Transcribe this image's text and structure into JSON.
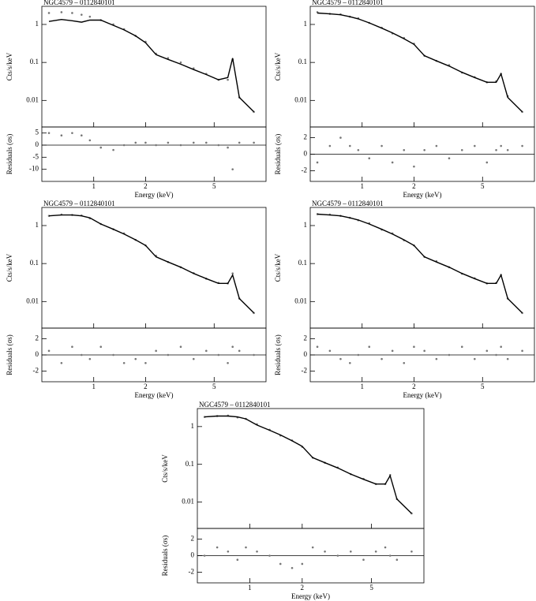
{
  "chart_data": [
    {
      "type": "line",
      "title": "NGC4579 – 0112840101",
      "ylabel": "Cts/s/keV",
      "log_x": true,
      "log_y": true,
      "xlim": [
        0.5,
        10
      ],
      "ylim": [
        0.002,
        3
      ],
      "yticks": [
        0.01,
        0.1,
        1
      ],
      "x": [
        0.55,
        0.65,
        0.75,
        0.85,
        0.95,
        1.1,
        1.3,
        1.5,
        1.75,
        2.0,
        2.3,
        2.7,
        3.2,
        3.8,
        4.5,
        5.3,
        6.0,
        6.4,
        7.0,
        8.5
      ],
      "series": [
        {
          "color": "#777777",
          "values": [
            2.0,
            2.1,
            2.0,
            1.8,
            1.6,
            1.3,
            1.0,
            0.75,
            0.5,
            0.35,
            0.17,
            0.13,
            0.1,
            0.07,
            0.05,
            0.035,
            0.035,
            0.12,
            0.012,
            0.005
          ]
        },
        {
          "color": "#000000",
          "values": [
            1.2,
            1.35,
            1.25,
            1.15,
            1.3,
            1.3,
            0.95,
            0.72,
            0.5,
            0.33,
            0.16,
            0.12,
            0.09,
            0.065,
            0.048,
            0.035,
            0.04,
            0.13,
            0.012,
            0.005
          ]
        }
      ]
    },
    {
      "type": "scatter",
      "ylabel": "Residuals (σs)",
      "xlabel": "Energy (keV)",
      "xlim": [
        0.5,
        10
      ],
      "ylim": [
        -15,
        7.5
      ],
      "xticks": [
        1,
        2,
        5
      ],
      "yticks": [
        -10,
        -5,
        0,
        5
      ],
      "hline": 0,
      "color": "#777777",
      "x": [
        0.55,
        0.65,
        0.75,
        0.85,
        0.95,
        1.1,
        1.3,
        1.5,
        1.75,
        2.0,
        2.3,
        2.7,
        3.2,
        3.8,
        4.5,
        5.3,
        6.0,
        6.4,
        7.0,
        8.5
      ],
      "values": [
        5,
        4,
        5,
        4,
        2,
        -1,
        -2,
        0,
        1,
        1,
        0,
        1,
        0,
        1,
        1,
        0,
        -1,
        -10,
        1,
        1
      ]
    },
    {
      "type": "line",
      "title": "NGC4579 – 0112840101",
      "ylabel": "Cts/s/keV",
      "log_x": true,
      "log_y": true,
      "xlim": [
        0.5,
        10
      ],
      "ylim": [
        0.002,
        3
      ],
      "yticks": [
        0.01,
        0.1,
        1
      ],
      "x": [
        0.55,
        0.65,
        0.75,
        0.85,
        0.95,
        1.1,
        1.3,
        1.5,
        1.75,
        2.0,
        2.3,
        2.7,
        3.2,
        3.8,
        4.5,
        5.3,
        6.0,
        6.4,
        7.0,
        8.5
      ],
      "series": [
        {
          "color": "#777777",
          "values": [
            2.1,
            1.9,
            1.85,
            1.6,
            1.45,
            1.1,
            0.82,
            0.58,
            0.44,
            0.31,
            0.15,
            0.11,
            0.085,
            0.054,
            0.041,
            0.03,
            0.032,
            0.05,
            0.013,
            0.005
          ]
        },
        {
          "color": "#000000",
          "values": [
            2.0,
            1.9,
            1.8,
            1.6,
            1.4,
            1.1,
            0.8,
            0.6,
            0.42,
            0.3,
            0.15,
            0.11,
            0.08,
            0.055,
            0.04,
            0.03,
            0.03,
            0.05,
            0.012,
            0.005
          ]
        }
      ]
    },
    {
      "type": "scatter",
      "ylabel": "Residuals (σs)",
      "xlabel": "Energy (keV)",
      "xlim": [
        0.5,
        10
      ],
      "ylim": [
        -3.3,
        3.3
      ],
      "xticks": [
        1,
        2,
        5
      ],
      "yticks": [
        -2,
        0,
        2
      ],
      "hline": 0,
      "color": "#777777",
      "x": [
        0.55,
        0.65,
        0.75,
        0.85,
        0.95,
        1.1,
        1.3,
        1.5,
        1.75,
        2.0,
        2.3,
        2.7,
        3.2,
        3.8,
        4.5,
        5.3,
        6.0,
        6.4,
        7.0,
        8.5
      ],
      "values": [
        -1,
        1,
        2,
        1,
        0.5,
        -0.5,
        1,
        -1,
        0.5,
        -1.5,
        0.5,
        1,
        -0.5,
        0.5,
        1,
        -1,
        0.5,
        1,
        0.5,
        1
      ]
    },
    {
      "type": "line",
      "title": "NGC4579 – 0112840101",
      "ylabel": "Cts/s/keV",
      "log_x": true,
      "log_y": true,
      "xlim": [
        0.5,
        10
      ],
      "ylim": [
        0.002,
        3
      ],
      "yticks": [
        0.01,
        0.1,
        1
      ],
      "x": [
        0.55,
        0.65,
        0.75,
        0.85,
        0.95,
        1.1,
        1.3,
        1.5,
        1.75,
        2.0,
        2.3,
        2.7,
        3.2,
        3.8,
        4.5,
        5.3,
        6.0,
        6.4,
        7.0,
        8.5
      ],
      "series": [
        {
          "color": "#777777",
          "values": [
            1.8,
            1.95,
            1.9,
            1.85,
            1.55,
            1.1,
            0.8,
            0.62,
            0.42,
            0.3,
            0.16,
            0.11,
            0.08,
            0.056,
            0.04,
            0.031,
            0.03,
            0.055,
            0.012,
            0.005
          ]
        },
        {
          "color": "#000000",
          "values": [
            1.8,
            1.9,
            1.9,
            1.8,
            1.6,
            1.1,
            0.8,
            0.6,
            0.42,
            0.3,
            0.15,
            0.11,
            0.08,
            0.055,
            0.04,
            0.03,
            0.03,
            0.05,
            0.012,
            0.005
          ]
        }
      ]
    },
    {
      "type": "scatter",
      "ylabel": "Residuals (σs)",
      "xlabel": "Energy (keV)",
      "xlim": [
        0.5,
        10
      ],
      "ylim": [
        -3.3,
        3.3
      ],
      "xticks": [
        1,
        2,
        5
      ],
      "yticks": [
        -2,
        0,
        2
      ],
      "hline": 0,
      "color": "#777777",
      "x": [
        0.55,
        0.65,
        0.75,
        0.85,
        0.95,
        1.1,
        1.3,
        1.5,
        1.75,
        2.0,
        2.3,
        2.7,
        3.2,
        3.8,
        4.5,
        5.3,
        6.0,
        6.4,
        7.0,
        8.5
      ],
      "values": [
        0.5,
        -1,
        1,
        0,
        -0.5,
        1,
        0,
        -1,
        -0.5,
        -1,
        0.5,
        0,
        1,
        -0.5,
        0.5,
        0,
        -1,
        1,
        0.5,
        0
      ]
    },
    {
      "type": "line",
      "title": "NGC4579 – 0112840101",
      "ylabel": "Cts/s/keV",
      "log_x": true,
      "log_y": true,
      "xlim": [
        0.5,
        10
      ],
      "ylim": [
        0.002,
        3
      ],
      "yticks": [
        0.01,
        0.1,
        1
      ],
      "x": [
        0.55,
        0.65,
        0.75,
        0.85,
        0.95,
        1.1,
        1.3,
        1.5,
        1.75,
        2.0,
        2.3,
        2.7,
        3.2,
        3.8,
        4.5,
        5.3,
        6.0,
        6.4,
        7.0,
        8.5
      ],
      "series": [
        {
          "color": "#777777",
          "values": [
            2.0,
            1.95,
            1.8,
            1.6,
            1.38,
            1.15,
            0.78,
            0.62,
            0.41,
            0.3,
            0.15,
            0.115,
            0.08,
            0.054,
            0.041,
            0.03,
            0.031,
            0.05,
            0.012,
            0.005
          ]
        },
        {
          "color": "#000000",
          "values": [
            2.0,
            1.9,
            1.8,
            1.6,
            1.4,
            1.1,
            0.8,
            0.6,
            0.42,
            0.3,
            0.15,
            0.11,
            0.08,
            0.055,
            0.04,
            0.03,
            0.03,
            0.05,
            0.012,
            0.005
          ]
        }
      ]
    },
    {
      "type": "scatter",
      "ylabel": "Residuals (σs)",
      "xlabel": "Energy (keV)",
      "xlim": [
        0.5,
        10
      ],
      "ylim": [
        -3.3,
        3.3
      ],
      "xticks": [
        1,
        2,
        5
      ],
      "yticks": [
        -2,
        0,
        2
      ],
      "hline": 0,
      "color": "#777777",
      "x": [
        0.55,
        0.65,
        0.75,
        0.85,
        0.95,
        1.1,
        1.3,
        1.5,
        1.75,
        2.0,
        2.3,
        2.7,
        3.2,
        3.8,
        4.5,
        5.3,
        6.0,
        6.4,
        7.0,
        8.5
      ],
      "values": [
        1,
        0.5,
        -0.5,
        -1,
        0,
        1,
        -0.5,
        0.5,
        -1,
        1,
        0.5,
        -0.5,
        0,
        1,
        -0.5,
        0.5,
        0,
        1,
        -0.5,
        0.5
      ]
    },
    {
      "type": "line",
      "title": "NGC4579 – 0112840101",
      "ylabel": "Cts/s/keV",
      "log_x": true,
      "log_y": true,
      "xlim": [
        0.5,
        10
      ],
      "ylim": [
        0.002,
        3
      ],
      "yticks": [
        0.01,
        0.1,
        1
      ],
      "x": [
        0.55,
        0.65,
        0.75,
        0.85,
        0.95,
        1.1,
        1.3,
        1.5,
        1.75,
        2.0,
        2.3,
        2.7,
        3.2,
        3.8,
        4.5,
        5.3,
        6.0,
        6.4,
        7.0,
        8.5
      ],
      "series": [
        {
          "color": "#777777",
          "values": [
            1.8,
            1.9,
            1.95,
            1.75,
            1.6,
            1.15,
            0.82,
            0.58,
            0.43,
            0.29,
            0.15,
            0.11,
            0.082,
            0.055,
            0.041,
            0.03,
            0.03,
            0.052,
            0.012,
            0.005
          ]
        },
        {
          "color": "#000000",
          "values": [
            1.8,
            1.9,
            1.9,
            1.8,
            1.6,
            1.1,
            0.8,
            0.6,
            0.42,
            0.3,
            0.15,
            0.11,
            0.08,
            0.055,
            0.04,
            0.03,
            0.03,
            0.05,
            0.012,
            0.005
          ]
        }
      ]
    },
    {
      "type": "scatter",
      "ylabel": "Residuals (σs)",
      "xlabel": "Energy (keV)",
      "xlim": [
        0.5,
        10
      ],
      "ylim": [
        -3.3,
        3.3
      ],
      "xticks": [
        1,
        2,
        5
      ],
      "yticks": [
        -2,
        0,
        2
      ],
      "hline": 0,
      "color": "#777777",
      "x": [
        0.55,
        0.65,
        0.75,
        0.85,
        0.95,
        1.1,
        1.3,
        1.5,
        1.75,
        2.0,
        2.3,
        2.7,
        3.2,
        3.8,
        4.5,
        5.3,
        6.0,
        6.4,
        7.0,
        8.5
      ],
      "values": [
        0,
        1,
        0.5,
        -0.5,
        1,
        0.5,
        0,
        -1,
        -1.5,
        -1,
        1,
        0.5,
        0,
        0.5,
        -0.5,
        0.5,
        1,
        0,
        -0.5,
        0.5
      ]
    }
  ]
}
